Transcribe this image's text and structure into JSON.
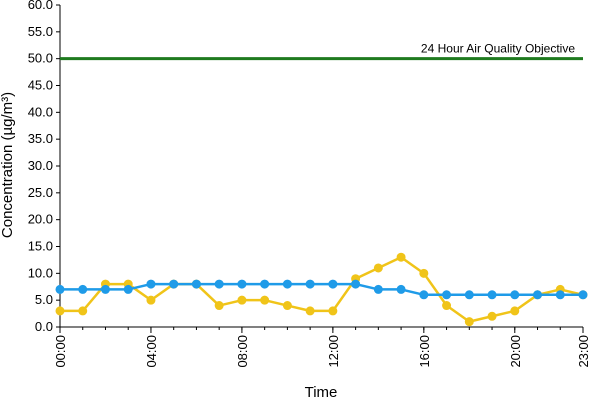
{
  "chart_data": {
    "type": "line",
    "xlabel": "Time",
    "ylabel": "Concentration (µg/m³)",
    "ylim": [
      0,
      60
    ],
    "y_ticks": [
      "0.0",
      "5.0",
      "10.0",
      "15.0",
      "20.0",
      "25.0",
      "30.0",
      "35.0",
      "40.0",
      "45.0",
      "50.0",
      "55.0",
      "60.0"
    ],
    "x_tick_labels": [
      "00:00",
      "04:00",
      "08:00",
      "12:00",
      "16:00",
      "20:00",
      "23:00"
    ],
    "x_tick_hours": [
      0,
      4,
      8,
      12,
      16,
      20,
      23
    ],
    "x": [
      0,
      1,
      2,
      3,
      4,
      5,
      6,
      7,
      8,
      9,
      10,
      11,
      12,
      13,
      14,
      15,
      16,
      17,
      18,
      19,
      20,
      21,
      22,
      23
    ],
    "series": [
      {
        "color": "#f0c419",
        "values": [
          3,
          3,
          8,
          8,
          5,
          8,
          8,
          4,
          5,
          5,
          4,
          3,
          3,
          9,
          11,
          13,
          10,
          4,
          1,
          2,
          3,
          6,
          7,
          6
        ]
      },
      {
        "color": "#1f9be8",
        "values": [
          7,
          7,
          7,
          7,
          8,
          8,
          8,
          8,
          8,
          8,
          8,
          8,
          8,
          8,
          7,
          7,
          6,
          6,
          6,
          6,
          6,
          6,
          6,
          6
        ]
      }
    ],
    "reference_line": {
      "value": 50,
      "label": "24 Hour Air Quality Objective",
      "color": "#1e7a1e"
    },
    "grid": false
  }
}
